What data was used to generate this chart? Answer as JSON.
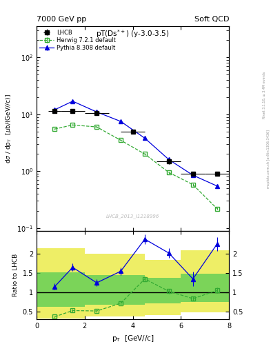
{
  "title_left": "7000 GeV pp",
  "title_right": "Soft QCD",
  "plot_label": "pT(Ds$^{+}$) (y-3.0-3.5)",
  "watermark": "LHCB_2013_I1218996",
  "ylabel_main": "dσ / dp_T  [μb/(GeV//c)]",
  "ylabel_ratio": "Ratio to LHCB",
  "xlabel": "p_T  [GeV//c]",
  "right_label1": "Rivet 3.1.10, ≥ 3.4M events",
  "right_label2": "mcplots.cern.ch [arXiv:1306.3436]",
  "lhcb_x": [
    0.75,
    1.5,
    2.5,
    4.0,
    5.5,
    6.5,
    7.5
  ],
  "lhcb_y": [
    11.5,
    11.5,
    10.5,
    5.0,
    1.5,
    0.9,
    0.9
  ],
  "lhcb_yerr": [
    0.7,
    0.7,
    0.7,
    0.4,
    0.15,
    0.08,
    0.08
  ],
  "lhcb_xerr": [
    0.25,
    0.5,
    0.5,
    0.5,
    0.5,
    0.5,
    0.5
  ],
  "herwig_x": [
    0.75,
    1.5,
    2.5,
    3.5,
    4.5,
    5.5,
    6.5,
    7.5
  ],
  "herwig_y": [
    5.5,
    6.5,
    6.0,
    3.5,
    2.0,
    0.95,
    0.58,
    0.22
  ],
  "herwig_yerr": [
    0.15,
    0.15,
    0.15,
    0.1,
    0.08,
    0.04,
    0.03,
    0.01
  ],
  "pythia_x": [
    0.75,
    1.5,
    2.5,
    3.5,
    4.5,
    5.5,
    6.5,
    7.5
  ],
  "pythia_y": [
    12.0,
    17.0,
    11.0,
    7.5,
    3.8,
    1.6,
    0.85,
    0.55
  ],
  "pythia_yerr": [
    0.3,
    0.4,
    0.3,
    0.2,
    0.15,
    0.08,
    0.05,
    0.03
  ],
  "ratio_herwig_x": [
    0.75,
    1.5,
    2.5,
    3.5,
    4.5,
    5.5,
    6.5,
    7.5
  ],
  "ratio_herwig_y": [
    0.37,
    0.53,
    0.52,
    0.72,
    1.35,
    1.03,
    0.84,
    1.05
  ],
  "ratio_herwig_yerr": [
    0.03,
    0.04,
    0.04,
    0.05,
    0.07,
    0.06,
    0.06,
    0.07
  ],
  "ratio_pythia_x": [
    0.75,
    1.5,
    2.5,
    3.5,
    4.5,
    5.5,
    6.5,
    7.5
  ],
  "ratio_pythia_y": [
    1.15,
    1.65,
    1.25,
    1.55,
    2.38,
    2.02,
    1.35,
    2.25
  ],
  "ratio_pythia_yerr": [
    0.08,
    0.1,
    0.09,
    0.1,
    0.13,
    0.13,
    0.18,
    0.18
  ],
  "band_edges": [
    0.0,
    1.0,
    2.0,
    4.5,
    6.0,
    8.0
  ],
  "band_yellow_lo": [
    0.32,
    0.32,
    0.38,
    0.42,
    0.48,
    0.48
  ],
  "band_yellow_hi": [
    2.15,
    2.15,
    2.0,
    1.85,
    2.1,
    2.1
  ],
  "band_green_lo": [
    0.62,
    0.62,
    0.68,
    0.72,
    0.75,
    0.75
  ],
  "band_green_hi": [
    1.52,
    1.52,
    1.45,
    1.38,
    1.48,
    1.48
  ],
  "ylim_main": [
    0.09,
    350
  ],
  "ylim_ratio": [
    0.3,
    2.6
  ],
  "xlim": [
    0.0,
    8.0
  ],
  "color_lhcb": "#000000",
  "color_herwig": "#33aa33",
  "color_pythia": "#0000dd",
  "color_band_green": "#55cc55",
  "color_band_yellow": "#eeee66",
  "bg_color": "#ffffff"
}
